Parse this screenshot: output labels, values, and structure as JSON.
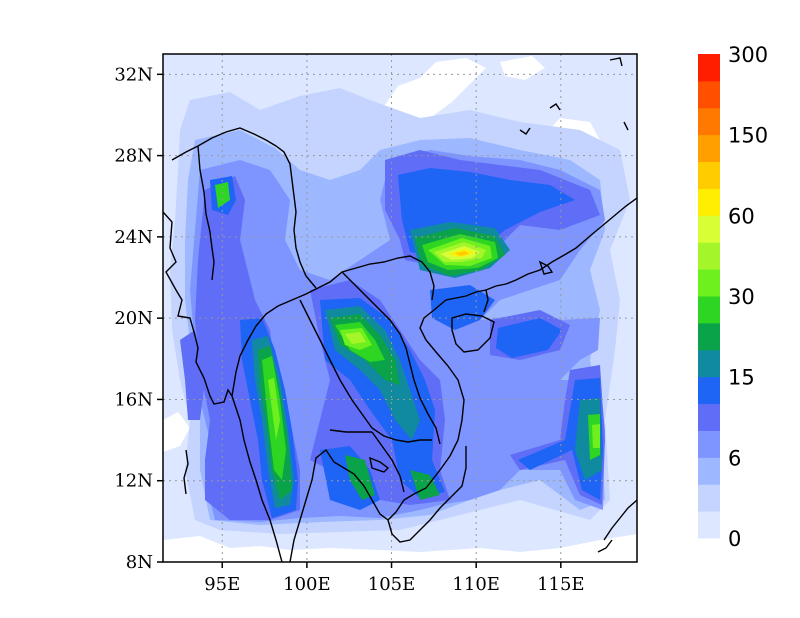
{
  "map": {
    "lat_labels": [
      "32N",
      "28N",
      "24N",
      "20N",
      "16N",
      "12N",
      "8N"
    ],
    "lon_labels": [
      "95E",
      "100E",
      "105E",
      "110E",
      "115E"
    ],
    "lat_values": [
      32,
      28,
      24,
      20,
      16,
      12,
      8
    ],
    "lon_values": [
      95,
      100,
      105,
      110,
      115
    ],
    "grid": "dotted"
  },
  "colorbar": {
    "colors": [
      "#dde7ff",
      "#c4d4ff",
      "#9db8ff",
      "#7e94ff",
      "#5f6df7",
      "#1e64f5",
      "#108a9e",
      "#0aa34a",
      "#2ed623",
      "#6ef01e",
      "#a4f52a",
      "#d8ff35",
      "#ffee00",
      "#ffcc00",
      "#ffa000",
      "#ff7800",
      "#ff5000",
      "#ff1e00"
    ],
    "labels": [
      "0",
      "6",
      "15",
      "30",
      "60",
      "150",
      "300"
    ],
    "placement": "right"
  },
  "chart_data": {
    "type": "heatmap",
    "title": "",
    "xlabel": "",
    "ylabel": "",
    "xlim": [
      91.5,
      119.5
    ],
    "ylim": [
      8,
      33
    ],
    "color_levels": [
      "0",
      "6",
      "15",
      "30",
      "60",
      "150",
      "300"
    ],
    "max_region": "southern China near 110E, 23N"
  }
}
